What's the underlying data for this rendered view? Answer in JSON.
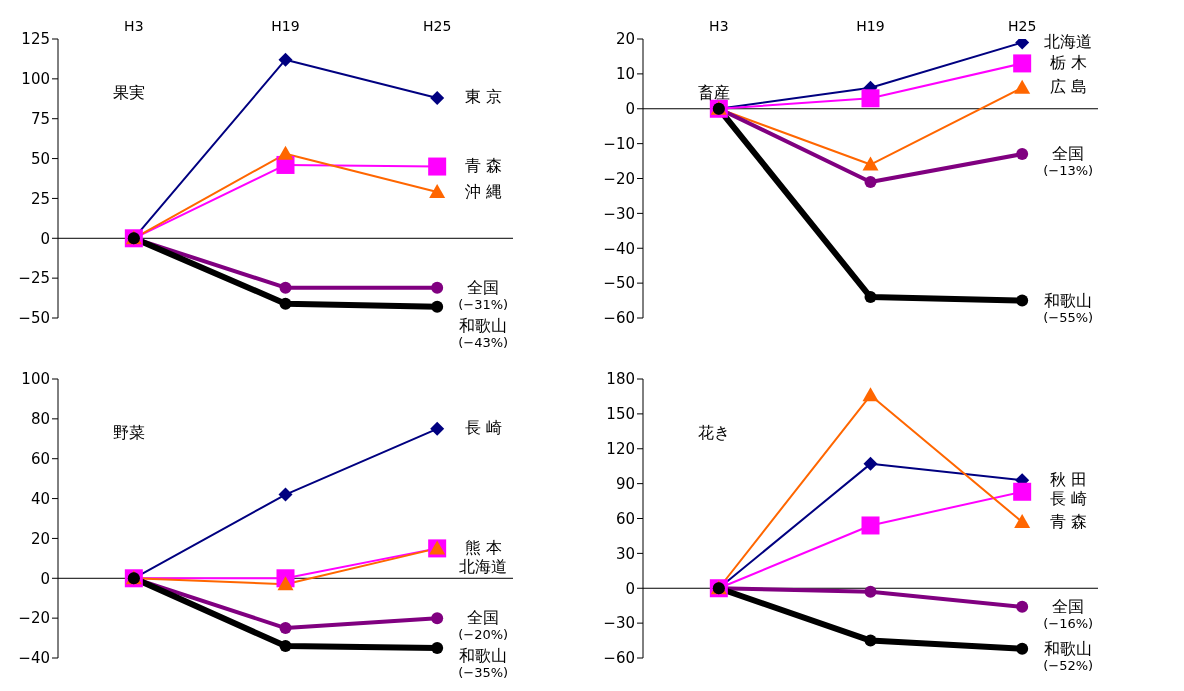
{
  "chart_data": [
    {
      "type": "line",
      "title": "果実",
      "categories": [
        "H3",
        "H19",
        "H25"
      ],
      "ylim": [
        -50,
        125
      ],
      "yticks": [
        -50,
        -25,
        0,
        25,
        50,
        75,
        100,
        125
      ],
      "legend": false,
      "series": [
        {
          "name": "東 京",
          "color": "#000080",
          "marker": "diamond",
          "values": [
            0,
            112,
            88
          ]
        },
        {
          "name": "青 森",
          "color": "#ff00ff",
          "marker": "square",
          "values": [
            0,
            46,
            45
          ]
        },
        {
          "name": "沖 縄",
          "color": "#ff6600",
          "marker": "triangle",
          "values": [
            0,
            53,
            29
          ]
        },
        {
          "name": "全国",
          "color": "#800080",
          "marker": "circle",
          "values": [
            0,
            -31,
            -31
          ]
        },
        {
          "name": "和歌山",
          "color": "#000000",
          "marker": "circle",
          "values": [
            0,
            -41,
            -43
          ]
        }
      ],
      "annotations": [
        "(−31%)",
        "(−43%)"
      ]
    },
    {
      "type": "line",
      "title": "畜産",
      "categories": [
        "H3",
        "H19",
        "H25"
      ],
      "ylim": [
        -60,
        20
      ],
      "yticks": [
        -60,
        -50,
        -40,
        -30,
        -20,
        -10,
        0,
        10,
        20
      ],
      "legend": false,
      "series": [
        {
          "name": "北海道",
          "color": "#000080",
          "marker": "diamond",
          "values": [
            0,
            6,
            19
          ]
        },
        {
          "name": "栃 木",
          "color": "#ff00ff",
          "marker": "square",
          "values": [
            0,
            3,
            13
          ]
        },
        {
          "name": "広 島",
          "color": "#ff6600",
          "marker": "triangle",
          "values": [
            0,
            -16,
            6
          ]
        },
        {
          "name": "全国",
          "color": "#800080",
          "marker": "circle",
          "values": [
            0,
            -21,
            -13
          ]
        },
        {
          "name": "和歌山",
          "color": "#000000",
          "marker": "circle",
          "values": [
            0,
            -54,
            -55
          ]
        }
      ],
      "annotations": [
        "(−13%)",
        "(−55%)"
      ]
    },
    {
      "type": "line",
      "title": "野菜",
      "categories": [
        null,
        null,
        null
      ],
      "ylim": [
        -40,
        100
      ],
      "yticks": [
        -40,
        -20,
        0,
        20,
        40,
        60,
        80,
        100
      ],
      "legend": false,
      "series": [
        {
          "name": "長 崎",
          "color": "#000080",
          "marker": "diamond",
          "values": [
            0,
            42,
            75
          ]
        },
        {
          "name": "熊 本",
          "color": "#ff00ff",
          "marker": "square",
          "values": [
            0,
            0,
            15
          ]
        },
        {
          "name": "北海道",
          "color": "#ff6600",
          "marker": "triangle",
          "values": [
            0,
            -3,
            15
          ]
        },
        {
          "name": "全国",
          "color": "#800080",
          "marker": "circle",
          "values": [
            0,
            -25,
            -20
          ]
        },
        {
          "name": "和歌山",
          "color": "#000000",
          "marker": "circle",
          "values": [
            0,
            -34,
            -35
          ]
        }
      ],
      "annotations": [
        "(−20%)",
        "(−35%)"
      ]
    },
    {
      "type": "line",
      "title": "花き",
      "categories": [
        null,
        null,
        null
      ],
      "ylim": [
        -60,
        180
      ],
      "yticks": [
        -60,
        -30,
        0,
        30,
        60,
        90,
        120,
        150,
        180
      ],
      "legend": false,
      "series": [
        {
          "name": "秋 田",
          "color": "#000080",
          "marker": "diamond",
          "values": [
            0,
            107,
            93
          ]
        },
        {
          "name": "長 崎",
          "color": "#ff00ff",
          "marker": "square",
          "values": [
            0,
            54,
            83
          ]
        },
        {
          "name": "青 森",
          "color": "#ff6600",
          "marker": "triangle",
          "values": [
            0,
            166,
            57
          ]
        },
        {
          "name": "全国",
          "color": "#800080",
          "marker": "circle",
          "values": [
            0,
            -3,
            -16
          ]
        },
        {
          "name": "和歌山",
          "color": "#000000",
          "marker": "circle",
          "values": [
            0,
            -45,
            -52
          ]
        }
      ],
      "annotations": [
        "(−16%)",
        "(−52%)"
      ]
    }
  ]
}
